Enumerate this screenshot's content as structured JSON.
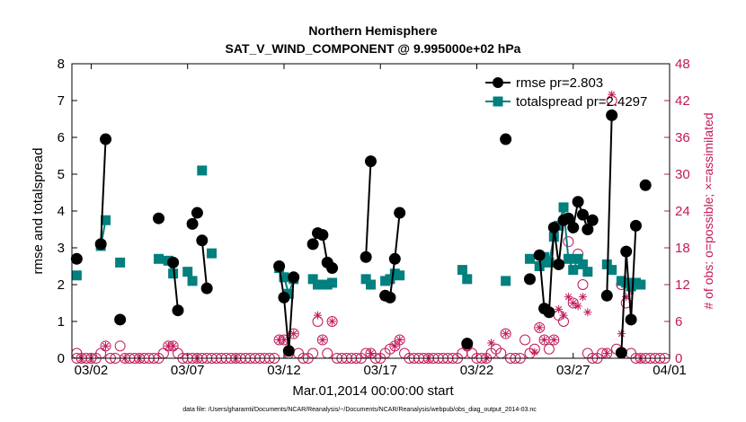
{
  "chart_data": {
    "type": "line",
    "title": "Northern Hemisphere",
    "subtitle": "SAT_V_WIND_COMPONENT @ 9.995000e+02 hPa",
    "xlabel": "Mar.01,2014 00:00:00 start",
    "ylabel": "rmse and totalspread",
    "ylabel_right": "# of obs: o=possible; ×=assimilated",
    "footnote": "data file: /Users/gharamti/Documents/NCAR/Reanalysis/~/Documents/NCAR/Reanalysis/webpub/obs_diag_output_2014-03.nc",
    "xlim": [
      0.5,
      31.5
    ],
    "ylim": [
      0,
      8
    ],
    "ylim_right": [
      0,
      48
    ],
    "xticks": [
      {
        "x": 1.5,
        "label": "03/02"
      },
      {
        "x": 6.5,
        "label": "03/07"
      },
      {
        "x": 11.5,
        "label": "03/12"
      },
      {
        "x": 16.5,
        "label": "03/17"
      },
      {
        "x": 21.5,
        "label": "03/22"
      },
      {
        "x": 26.5,
        "label": "03/27"
      },
      {
        "x": 31.5,
        "label": "04/01"
      }
    ],
    "yticks": [
      "0",
      "1",
      "2",
      "3",
      "4",
      "5",
      "6",
      "7",
      "8"
    ],
    "yticks_right": [
      "0",
      "6",
      "12",
      "18",
      "24",
      "30",
      "36",
      "42",
      "48"
    ],
    "colors": {
      "rmse": "#000000",
      "spread": "#00807f",
      "obs": "#c2185b"
    },
    "series": [
      {
        "name": "rmse pr=2.803",
        "marker": "circle",
        "segments": [
          [
            [
              0.75,
              2.7
            ]
          ],
          [
            [
              2.0,
              3.1
            ],
            [
              2.25,
              5.95
            ]
          ],
          [
            [
              3.0,
              1.05
            ]
          ],
          [
            [
              5.0,
              3.8
            ]
          ],
          [
            [
              5.75,
              2.6
            ],
            [
              6.0,
              1.3
            ]
          ],
          [
            [
              6.75,
              3.65
            ],
            [
              7.0,
              3.95
            ]
          ],
          [
            [
              7.25,
              3.2
            ],
            [
              7.5,
              1.9
            ]
          ],
          [
            [
              11.25,
              2.5
            ],
            [
              11.5,
              1.65
            ],
            [
              11.75,
              0.2
            ],
            [
              12.0,
              2.2
            ]
          ],
          [
            [
              13.0,
              3.1
            ],
            [
              13.25,
              3.4
            ],
            [
              13.5,
              3.35
            ],
            [
              13.75,
              2.6
            ],
            [
              14.0,
              2.45
            ]
          ],
          [
            [
              15.75,
              2.75
            ],
            [
              16.0,
              5.35
            ]
          ],
          [
            [
              16.75,
              1.7
            ],
            [
              17.0,
              1.65
            ],
            [
              17.25,
              2.7
            ],
            [
              17.5,
              3.95
            ]
          ],
          [
            [
              21.0,
              0.4
            ]
          ],
          [
            [
              23.0,
              5.95
            ]
          ],
          [
            [
              24.25,
              2.15
            ]
          ],
          [
            [
              24.75,
              2.8
            ],
            [
              25.0,
              1.35
            ],
            [
              25.25,
              1.25
            ],
            [
              25.5,
              3.55
            ],
            [
              25.75,
              2.55
            ],
            [
              26.0,
              3.75
            ],
            [
              26.25,
              3.8
            ],
            [
              26.5,
              3.55
            ],
            [
              26.75,
              4.25
            ],
            [
              27.0,
              3.9
            ],
            [
              27.25,
              3.5
            ],
            [
              27.5,
              3.75
            ]
          ],
          [
            [
              28.25,
              1.7
            ],
            [
              28.5,
              6.6
            ]
          ],
          [
            [
              29.0,
              0.15
            ],
            [
              29.25,
              2.9
            ],
            [
              29.5,
              1.05
            ],
            [
              29.75,
              3.6
            ]
          ],
          [
            [
              30.25,
              4.7
            ]
          ]
        ]
      },
      {
        "name": "totalspread pr=2.4297",
        "marker": "square",
        "segments": [
          [
            [
              0.75,
              2.25
            ]
          ],
          [
            [
              2.0,
              3.05
            ],
            [
              2.25,
              3.75
            ]
          ],
          [
            [
              3.0,
              2.6
            ]
          ],
          [
            [
              5.0,
              2.7
            ]
          ],
          [
            [
              5.5,
              2.65
            ],
            [
              5.75,
              2.3
            ]
          ],
          [
            [
              6.5,
              2.35
            ],
            [
              6.75,
              2.1
            ]
          ],
          [
            [
              7.25,
              5.1
            ]
          ],
          [
            [
              7.75,
              2.85
            ]
          ],
          [
            [
              11.25,
              2.45
            ],
            [
              11.5,
              2.2
            ],
            [
              11.75,
              1.75
            ],
            [
              12.0,
              2.15
            ]
          ],
          [
            [
              13.0,
              2.15
            ],
            [
              13.25,
              2.0
            ],
            [
              13.5,
              2.0
            ],
            [
              13.75,
              2.0
            ],
            [
              14.0,
              2.05
            ]
          ],
          [
            [
              15.75,
              2.15
            ],
            [
              16.0,
              2.0
            ]
          ],
          [
            [
              16.75,
              2.1
            ],
            [
              17.0,
              2.15
            ],
            [
              17.25,
              2.3
            ],
            [
              17.5,
              2.25
            ]
          ],
          [
            [
              20.75,
              2.4
            ],
            [
              21.0,
              2.15
            ]
          ],
          [
            [
              23.0,
              2.1
            ]
          ],
          [
            [
              24.25,
              2.7
            ]
          ],
          [
            [
              24.75,
              2.5
            ],
            [
              25.0,
              2.75
            ],
            [
              25.25,
              2.6
            ],
            [
              25.5,
              3.3
            ],
            [
              25.75,
              3.6
            ],
            [
              26.0,
              4.1
            ],
            [
              26.25,
              2.7
            ],
            [
              26.5,
              2.4
            ],
            [
              26.75,
              2.7
            ],
            [
              27.0,
              2.55
            ],
            [
              27.25,
              2.35
            ]
          ],
          [
            [
              28.25,
              2.55
            ],
            [
              28.5,
              2.4
            ]
          ],
          [
            [
              29.0,
              2.1
            ],
            [
              29.25,
              2.05
            ],
            [
              29.5,
              1.95
            ],
            [
              29.75,
              2.05
            ],
            [
              30.0,
              2.0
            ]
          ]
        ]
      },
      {
        "name": "obs possible",
        "axis": "right",
        "marker": "circle-open",
        "points": [
          [
            0.75,
            0.8
          ],
          [
            0.75,
            0
          ],
          [
            1.0,
            0
          ],
          [
            1.25,
            0
          ],
          [
            1.5,
            0
          ],
          [
            1.75,
            0
          ],
          [
            2.0,
            0.8
          ],
          [
            2.25,
            2.0
          ],
          [
            2.5,
            0
          ],
          [
            2.75,
            0
          ],
          [
            3.0,
            2.0
          ],
          [
            3.25,
            0
          ],
          [
            3.5,
            0
          ],
          [
            3.75,
            0
          ],
          [
            4.0,
            0
          ],
          [
            4.25,
            0
          ],
          [
            4.5,
            0
          ],
          [
            4.75,
            0
          ],
          [
            5.0,
            0
          ],
          [
            5.25,
            0.8
          ],
          [
            5.5,
            2.0
          ],
          [
            5.75,
            2.0
          ],
          [
            6.0,
            0.8
          ],
          [
            6.25,
            0
          ],
          [
            6.5,
            0
          ],
          [
            6.75,
            0
          ],
          [
            7.0,
            0
          ],
          [
            7.25,
            0
          ],
          [
            7.5,
            0
          ],
          [
            7.75,
            0
          ],
          [
            8.0,
            0
          ],
          [
            8.25,
            0
          ],
          [
            8.5,
            0
          ],
          [
            8.75,
            0
          ],
          [
            9.0,
            0
          ],
          [
            9.25,
            0
          ],
          [
            9.5,
            0
          ],
          [
            9.75,
            0
          ],
          [
            10.0,
            0
          ],
          [
            10.25,
            0
          ],
          [
            10.5,
            0
          ],
          [
            10.75,
            0
          ],
          [
            11.0,
            0
          ],
          [
            11.25,
            3.0
          ],
          [
            11.5,
            3.0
          ],
          [
            11.75,
            0.8
          ],
          [
            12.0,
            4.0
          ],
          [
            12.25,
            0.8
          ],
          [
            12.5,
            0
          ],
          [
            12.75,
            0
          ],
          [
            13.0,
            0.8
          ],
          [
            13.25,
            6.0
          ],
          [
            13.5,
            3.0
          ],
          [
            13.75,
            0.8
          ],
          [
            14.0,
            6.0
          ],
          [
            14.25,
            0
          ],
          [
            14.5,
            0
          ],
          [
            14.75,
            0
          ],
          [
            15.0,
            0
          ],
          [
            15.25,
            0
          ],
          [
            15.5,
            0
          ],
          [
            15.75,
            0.8
          ],
          [
            16.0,
            0.8
          ],
          [
            16.25,
            0
          ],
          [
            16.5,
            0
          ],
          [
            16.75,
            0.8
          ],
          [
            17.0,
            1.5
          ],
          [
            17.25,
            2.0
          ],
          [
            17.5,
            3.0
          ],
          [
            17.75,
            0.8
          ],
          [
            18.0,
            0
          ],
          [
            18.25,
            0
          ],
          [
            18.5,
            0
          ],
          [
            18.75,
            0
          ],
          [
            19.0,
            0
          ],
          [
            19.25,
            0
          ],
          [
            19.5,
            0
          ],
          [
            19.75,
            0
          ],
          [
            20.0,
            0
          ],
          [
            20.25,
            0
          ],
          [
            20.5,
            0
          ],
          [
            20.75,
            0.8
          ],
          [
            21.0,
            2.0
          ],
          [
            21.25,
            0.8
          ],
          [
            21.5,
            0
          ],
          [
            21.75,
            0
          ],
          [
            22.0,
            0
          ],
          [
            22.25,
            0.8
          ],
          [
            22.5,
            1.5
          ],
          [
            22.75,
            0.8
          ],
          [
            23.0,
            4.0
          ],
          [
            23.25,
            0
          ],
          [
            23.5,
            0
          ],
          [
            23.75,
            0
          ],
          [
            24.0,
            3.0
          ],
          [
            24.25,
            0.8
          ],
          [
            24.5,
            1.5
          ],
          [
            24.75,
            5.0
          ],
          [
            25.0,
            3.0
          ],
          [
            25.25,
            1.5
          ],
          [
            25.5,
            3.0
          ],
          [
            25.75,
            7.0
          ],
          [
            26.0,
            6.0
          ],
          [
            26.25,
            19.0
          ],
          [
            26.5,
            9.0
          ],
          [
            26.75,
            17.0
          ],
          [
            27.0,
            12.0
          ],
          [
            27.25,
            0.8
          ],
          [
            27.5,
            0
          ],
          [
            27.75,
            0
          ],
          [
            28.0,
            0.8
          ],
          [
            28.25,
            0.8
          ],
          [
            28.5,
            42.0
          ],
          [
            28.75,
            1.5
          ],
          [
            29.0,
            12.0
          ],
          [
            29.25,
            9.0
          ],
          [
            29.5,
            0.8
          ],
          [
            29.75,
            0
          ],
          [
            30.0,
            0
          ],
          [
            30.25,
            0
          ],
          [
            30.5,
            0
          ],
          [
            30.75,
            0
          ],
          [
            31.0,
            0
          ],
          [
            31.25,
            0
          ]
        ]
      },
      {
        "name": "obs assimilated",
        "axis": "right",
        "marker": "asterisk",
        "points": [
          [
            1.0,
            0
          ],
          [
            1.5,
            0
          ],
          [
            2.25,
            2.0
          ],
          [
            3.25,
            0
          ],
          [
            4.0,
            0
          ],
          [
            5.5,
            2.0
          ],
          [
            5.75,
            2.0
          ],
          [
            7.0,
            0
          ],
          [
            9.0,
            0
          ],
          [
            11.25,
            3.0
          ],
          [
            11.5,
            3.0
          ],
          [
            12.0,
            4.0
          ],
          [
            13.25,
            7.0
          ],
          [
            13.5,
            3.0
          ],
          [
            14.0,
            6.0
          ],
          [
            16.0,
            0.8
          ],
          [
            17.25,
            2.0
          ],
          [
            17.5,
            3.0
          ],
          [
            19.0,
            0
          ],
          [
            21.0,
            2.0
          ],
          [
            22.0,
            0
          ],
          [
            22.25,
            2.5
          ],
          [
            23.0,
            4.0
          ],
          [
            24.5,
            1.0
          ],
          [
            24.75,
            5.0
          ],
          [
            25.0,
            3.0
          ],
          [
            25.5,
            3.0
          ],
          [
            25.75,
            8.0
          ],
          [
            26.0,
            7.0
          ],
          [
            26.25,
            10.0
          ],
          [
            26.5,
            9.0
          ],
          [
            26.75,
            8.5
          ],
          [
            27.0,
            10.0
          ],
          [
            27.25,
            7.5
          ],
          [
            28.25,
            0.8
          ],
          [
            28.5,
            43.0
          ],
          [
            29.0,
            4.0
          ],
          [
            29.25,
            10.0
          ],
          [
            29.5,
            11.0
          ],
          [
            30.0,
            0
          ]
        ]
      }
    ],
    "legend": {
      "position": "top-right",
      "entries": [
        "rmse pr=2.803",
        "totalspread pr=2.4297"
      ]
    }
  }
}
